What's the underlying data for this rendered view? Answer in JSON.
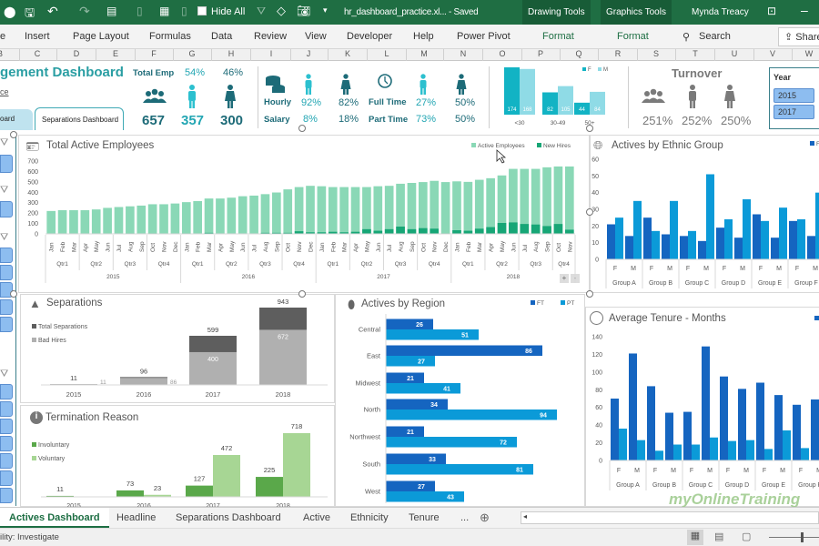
{
  "titlebar": {
    "hide_all": "Hide All",
    "filename": "hr_dashboard_practice.xl... - Saved",
    "drawing_tools": "Drawing Tools",
    "graphics_tools": "Graphics Tools",
    "user": "Mynda Treacy"
  },
  "ribbon": {
    "tabs": [
      "e",
      "Insert",
      "Page Layout",
      "Formulas",
      "Data",
      "Review",
      "View",
      "Developer",
      "Help",
      "Power Pivot",
      "Format",
      "Format"
    ],
    "search": "Search",
    "share": "Share"
  },
  "columns": [
    "B",
    "C",
    "D",
    "E",
    "F",
    "G",
    "H",
    "I",
    "J",
    "K",
    "L",
    "M",
    "N",
    "O",
    "P",
    "Q",
    "R",
    "S",
    "T",
    "U",
    "V",
    "W"
  ],
  "header": {
    "title": "gement Dashboard",
    "link": "ce",
    "nav_tabs": [
      "oard",
      "Separations Dashboard"
    ],
    "total_emp_label": "Total Emp",
    "male_pct": "54%",
    "female_pct": "46%",
    "total": "657",
    "male": "357",
    "female": "300",
    "hourly": "Hourly",
    "salary": "Salary",
    "hourly_m": "92%",
    "salary_m": "8%",
    "hourly_f": "82%",
    "salary_f": "18%",
    "full_time": "Full Time",
    "part_time": "Part Time",
    "ft_m": "27%",
    "pt_m": "73%",
    "ft_f": "50%",
    "pt_f": "50%",
    "turnover": "Turnover",
    "turnover_total": "251%",
    "turnover_m": "252%",
    "turnover_f": "250%",
    "year_slicer": {
      "title": "Year",
      "items": [
        "2015",
        "2017"
      ]
    }
  },
  "chart_data": [
    {
      "type": "bar",
      "title": "Total Active Employees",
      "ylim": [
        0,
        700
      ],
      "yticks": [
        "0",
        "100",
        "200",
        "300",
        "400",
        "500",
        "600",
        "700"
      ],
      "months": [
        "Jan",
        "Feb",
        "Mar",
        "Apr",
        "May",
        "Jun",
        "Jul",
        "Aug",
        "Sep",
        "Oct",
        "Nov",
        "Dec",
        "Jan",
        "Feb",
        "Mar",
        "Apr",
        "May",
        "Jun",
        "Jul",
        "Aug",
        "Sep",
        "Oct",
        "Nov",
        "Dec",
        "Jan",
        "Feb",
        "Mar",
        "Apr",
        "May",
        "Jun",
        "Jul",
        "Aug",
        "Sep",
        "Oct",
        "Nov",
        "Dec",
        "Jan",
        "Feb",
        "Mar",
        "Apr",
        "May",
        "Jun",
        "Jul",
        "Aug",
        "Sep",
        "Oct",
        "Nov"
      ],
      "quarters": [
        "Qtr1",
        "Qtr2",
        "Qtr3",
        "Qtr4",
        "Qtr1",
        "Qtr2",
        "Qtr3",
        "Qtr4",
        "Qtr1",
        "Qtr2",
        "Qtr3",
        "Qtr4",
        "Qtr1",
        "Qtr2",
        "Qtr3",
        "Qtr4"
      ],
      "years": [
        "2015",
        "2016",
        "2017",
        "2018"
      ],
      "series": [
        {
          "name": "Active Employees",
          "color": "#8ad8b6",
          "values": [
            220,
            228,
            228,
            228,
            235,
            250,
            258,
            265,
            272,
            285,
            285,
            292,
            305,
            315,
            340,
            340,
            348,
            362,
            368,
            382,
            398,
            428,
            450,
            462,
            458,
            450,
            450,
            450,
            450,
            458,
            462,
            482,
            490,
            498,
            510,
            498,
            505,
            500,
            520,
            535,
            562,
            625,
            625,
            625,
            640,
            648,
            648
          ]
        },
        {
          "name": "New Hires",
          "color": "#17a676",
          "values": [
            0,
            0,
            0,
            0,
            0,
            0,
            0,
            5,
            0,
            5,
            0,
            0,
            5,
            0,
            10,
            0,
            0,
            0,
            0,
            10,
            10,
            10,
            25,
            15,
            15,
            20,
            15,
            20,
            45,
            30,
            45,
            70,
            45,
            55,
            50,
            5,
            35,
            30,
            50,
            65,
            105,
            110,
            95,
            90,
            75,
            95,
            40
          ]
        }
      ],
      "zoom_buttons": [
        "+",
        "-"
      ]
    },
    {
      "type": "bar",
      "title": "Actives by Ethnic Group",
      "ylim": [
        0,
        60
      ],
      "yticks": [
        "0",
        "10",
        "20",
        "30",
        "40",
        "50",
        "60"
      ],
      "groups": [
        "Group A",
        "Group B",
        "Group C",
        "Group D",
        "Group E",
        "Group F"
      ],
      "genders": [
        "F",
        "M"
      ],
      "legend": [
        "FT"
      ],
      "series": [
        {
          "name": "FT",
          "color": "#1565c0",
          "values": [
            21,
            14,
            25,
            15,
            14,
            11,
            19,
            13,
            27,
            13,
            23,
            14
          ]
        },
        {
          "name": "PT",
          "color": "#0b9ad8",
          "values": [
            25,
            35,
            17,
            35,
            17,
            51,
            24,
            36,
            23,
            31,
            24,
            40
          ]
        }
      ]
    },
    {
      "type": "bar",
      "title": "Separations",
      "categories": [
        "2015",
        "2016",
        "2017",
        "2018"
      ],
      "series": [
        {
          "name": "Total Separations",
          "color": "#5e5e5e",
          "values": [
            11,
            96,
            599,
            943
          ]
        },
        {
          "name": "Bad Hires",
          "color": "#b0b0b0",
          "values": [
            11,
            86,
            400,
            672
          ]
        }
      ]
    },
    {
      "type": "bar",
      "title": "Termination Reason",
      "categories": [
        "2015",
        "2016",
        "2017",
        "2018"
      ],
      "series": [
        {
          "name": "Involuntary",
          "color": "#5aa84a",
          "values": [
            11,
            73,
            127,
            225
          ]
        },
        {
          "name": "Voluntary",
          "color": "#a7d694",
          "values": [
            null,
            23,
            472,
            718
          ]
        }
      ]
    },
    {
      "type": "bar",
      "title": "Actives by Region",
      "categories": [
        "Central",
        "East",
        "Midwest",
        "North",
        "Northwest",
        "South",
        "West"
      ],
      "series": [
        {
          "name": "FT",
          "color": "#1565c0",
          "values": [
            26,
            86,
            21,
            34,
            21,
            33,
            27
          ]
        },
        {
          "name": "PT",
          "color": "#0b9ad8",
          "values": [
            51,
            27,
            41,
            94,
            72,
            81,
            43
          ]
        }
      ]
    },
    {
      "type": "bar",
      "title": "Average Tenure - Months",
      "ylim": [
        0,
        140
      ],
      "yticks": [
        "0",
        "20",
        "40",
        "60",
        "80",
        "100",
        "120",
        "140"
      ],
      "groups": [
        "Group A",
        "Group B",
        "Group C",
        "Group D",
        "Group E",
        "Group F"
      ],
      "genders": [
        "F",
        "M"
      ],
      "legend": [
        "FT"
      ],
      "series": [
        {
          "name": "FT",
          "color": "#1565c0",
          "values": [
            70,
            121,
            84,
            54,
            55,
            129,
            95,
            81,
            88,
            74,
            63,
            69
          ]
        },
        {
          "name": "PT",
          "color": "#0b9ad8",
          "values": [
            36,
            23,
            11,
            18,
            18,
            26,
            22,
            23,
            13,
            34,
            14,
            24
          ]
        }
      ]
    },
    {
      "type": "bar",
      "title": "",
      "categories": [
        "<30",
        "30-49",
        "50+"
      ],
      "series": [
        {
          "name": "F",
          "color": "#12b3c4",
          "values": [
            174,
            82,
            44
          ]
        },
        {
          "name": "M",
          "color": "#8fdbe6",
          "values": [
            168,
            105,
            84
          ]
        }
      ]
    }
  ],
  "sheet_tabs": [
    "Actives Dashboard",
    "Headline",
    "Separations Dashboard",
    "Active",
    "Ethnicity",
    "Tenure",
    "..."
  ],
  "status": {
    "text": "ility: Investigate"
  },
  "watermark": "myOnlineTraining"
}
